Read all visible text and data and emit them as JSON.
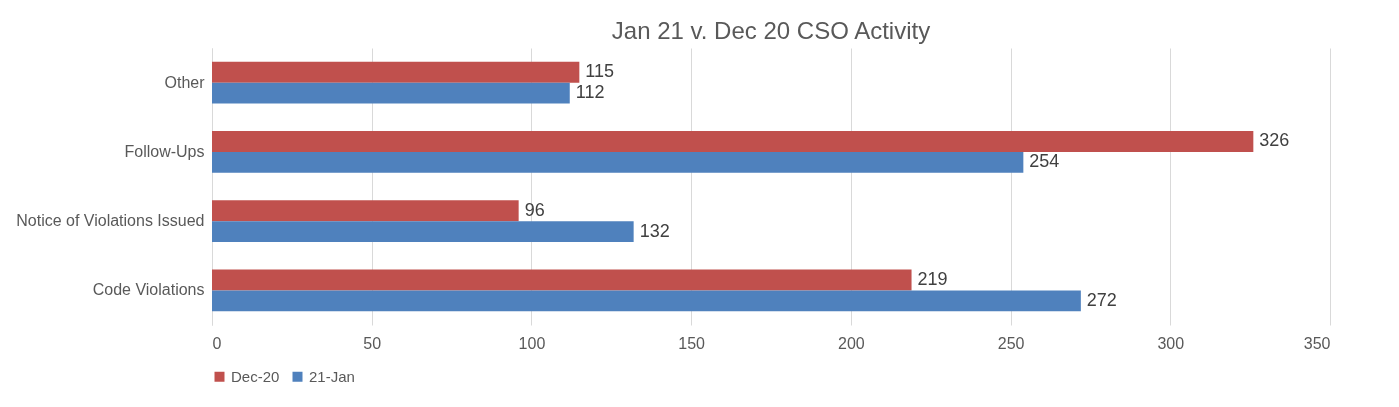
{
  "chart_data": {
    "type": "bar",
    "orientation": "horizontal",
    "title": "Jan 21 v. Dec 20 CSO Activity",
    "categories": [
      "Other",
      "Follow-Ups",
      "Notice of Violations Issued",
      "Code Violations"
    ],
    "series": [
      {
        "name": "Dec-20",
        "color": "#c0504d",
        "values": [
          115,
          326,
          96,
          219
        ]
      },
      {
        "name": "21-Jan",
        "color": "#4f81bd",
        "values": [
          112,
          254,
          132,
          272
        ]
      }
    ],
    "xlim": [
      0,
      350
    ],
    "xticks": [
      0,
      50,
      100,
      150,
      200,
      250,
      300,
      350
    ],
    "grid": "x",
    "legend": "bottom",
    "data_labels": true
  }
}
